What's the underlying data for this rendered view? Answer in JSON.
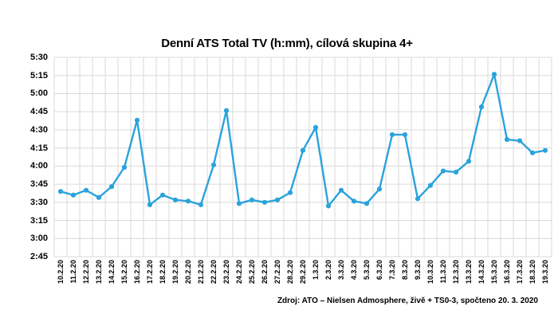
{
  "title": "Denní ATS Total TV (h:mm), cílová skupina 4+",
  "source_note": "Zdroj: ATO – Nielsen Admosphere, živě + TS0-3, spočteno 20. 3. 2020",
  "colors": {
    "line": "#2AA3DC",
    "marker": "#2AA3DC",
    "grid": "#D9D9D9",
    "text": "#000000",
    "background": "#FFFFFF"
  },
  "chart_data": {
    "type": "line",
    "title": "Denní ATS Total TV (h:mm), cílová skupina 4+",
    "xlabel": "",
    "ylabel": "",
    "legend": false,
    "grid": true,
    "ylim": [
      "2:45",
      "5:30"
    ],
    "ytick_step_minutes": 15,
    "y_ticks": [
      "5:30",
      "5:15",
      "5:00",
      "4:45",
      "4:30",
      "4:15",
      "4:00",
      "3:45",
      "3:30",
      "3:15",
      "3:00",
      "2:45"
    ],
    "categories": [
      "10.2.20",
      "11.2.20",
      "12.2.20",
      "13.2.20",
      "14.2.20",
      "15.2.20",
      "16.2.20",
      "17.2.20",
      "18.2.20",
      "19.2.20",
      "20.2.20",
      "21.2.20",
      "22.2.20",
      "23.2.20",
      "24.2.20",
      "25.2.20",
      "26.2.20",
      "27.2.20",
      "28.2.20",
      "29.2.20",
      "1.3.20",
      "2.3.20",
      "3.3.20",
      "4.3.20",
      "5.3.20",
      "6.3.20",
      "7.3.20",
      "8.3.20",
      "9.3.20",
      "10.3.20",
      "11.3.20",
      "12.3.20",
      "13.3.20",
      "14.3.20",
      "15.3.20",
      "16.3.20",
      "17.3.20",
      "18.3.20",
      "19.3.20"
    ],
    "values": [
      "3:39",
      "3:36",
      "3:40",
      "3:34",
      "3:43",
      "3:59",
      "4:38",
      "3:28",
      "3:36",
      "3:32",
      "3:31",
      "3:28",
      "4:01",
      "4:46",
      "3:29",
      "3:32",
      "3:30",
      "3:32",
      "3:38",
      "4:13",
      "4:32",
      "3:27",
      "3:40",
      "3:31",
      "3:29",
      "3:41",
      "4:26",
      "4:26",
      "3:33",
      "3:44",
      "3:56",
      "3:55",
      "4:04",
      "4:49",
      "5:16",
      "4:22",
      "4:21",
      "4:11",
      "4:13"
    ]
  }
}
